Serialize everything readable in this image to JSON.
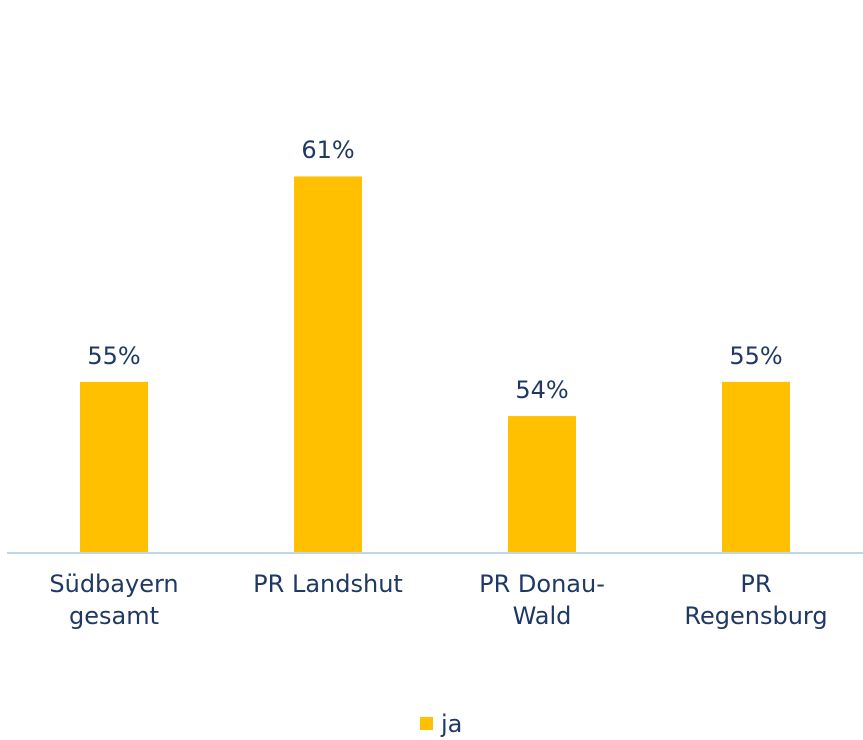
{
  "chart_data": {
    "type": "bar",
    "categories": [
      "Südbayern gesamt",
      "PR Landshut",
      "PR Donau-Wald",
      "PR Regensburg"
    ],
    "series": [
      {
        "name": "ja",
        "color": "#ffc000",
        "values": [
          55,
          61,
          54,
          55
        ],
        "value_labels": [
          "55%",
          "61%",
          "54%",
          "55%"
        ]
      }
    ],
    "ylim": [
      50,
      63
    ],
    "legend": "bottom"
  }
}
